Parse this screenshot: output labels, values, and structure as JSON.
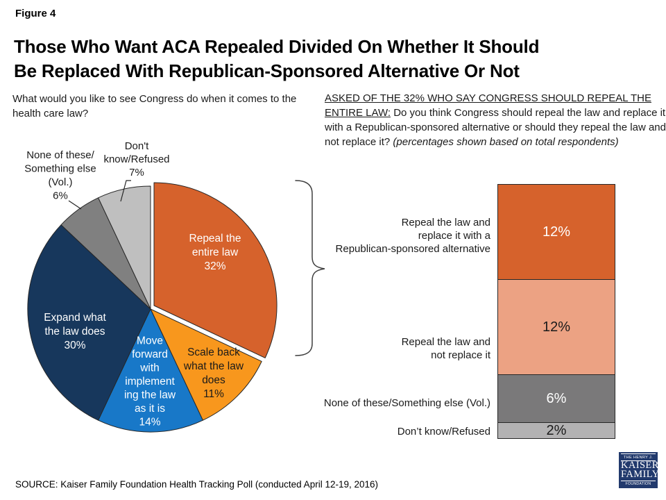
{
  "header": {
    "figure_label": "Figure 4",
    "title_line1": "Those Who Want ACA Repealed Divided On Whether It Should",
    "title_line2": "Be Replaced With Republican-Sponsored Alternative Or Not"
  },
  "pie_section": {
    "question": "What would you like to see Congress do when it comes to the health care law?"
  },
  "bar_section": {
    "question_prefix": "ASKED OF THE 32% WHO SAY CONGRESS SHOULD REPEAL THE ENTIRE LAW:",
    "question_body": " Do you think Congress should repeal the law and replace it with a Republican-sponsored alternative or should they repeal the law and not replace it? ",
    "question_note": "(percentages shown based on total respondents)"
  },
  "chart_data": [
    {
      "type": "pie",
      "title": "What would you like to see Congress do when it comes to the health care law?",
      "start_angle_deg": 0,
      "direction": "clockwise",
      "slices": [
        {
          "label": "Repeal the entire law",
          "value": 32,
          "color": "#D6622C",
          "text_color": "#FFFFFF",
          "inside": true,
          "exploded": true,
          "label_lines": [
            "Repeal the",
            "entire law",
            "32%"
          ]
        },
        {
          "label": "Scale back what the law does",
          "value": 11,
          "color": "#F8971D",
          "text_color": "#1A1A1A",
          "inside": true,
          "exploded": false,
          "label_lines": [
            "Scale back",
            "what the law",
            "does",
            "11%"
          ]
        },
        {
          "label": "Move forward with implementing the law as it is",
          "value": 14,
          "color": "#1878C8",
          "text_color": "#FFFFFF",
          "inside": true,
          "exploded": false,
          "label_lines": [
            "Move",
            "forward",
            "with",
            "implement",
            "ing the law",
            "as it is",
            "14%"
          ]
        },
        {
          "label": "Expand what the law does",
          "value": 30,
          "color": "#17375C",
          "text_color": "#FFFFFF",
          "inside": true,
          "exploded": false,
          "label_lines": [
            "Expand what",
            "the law does",
            "30%"
          ]
        },
        {
          "label": "None of these/Something else (Vol.)",
          "value": 6,
          "color": "#808080",
          "text_color": "#1A1A1A",
          "inside": false,
          "exploded": false,
          "label_lines": [
            "None of these/",
            "Something else",
            "(Vol.)",
            "6%"
          ]
        },
        {
          "label": "Don't know/Refused",
          "value": 7,
          "color": "#BFBFBF",
          "text_color": "#1A1A1A",
          "inside": false,
          "exploded": false,
          "label_lines": [
            "Don't",
            "know/Refused",
            "7%"
          ]
        }
      ]
    },
    {
      "type": "stacked_bar",
      "note": "percentages shown based on total respondents",
      "total_of_subset": 32,
      "segments": [
        {
          "label": "Repeal the law and replace it with a Republican-sponsored alternative",
          "label_lines": [
            "Repeal the law and",
            "replace it with a",
            "Republican-sponsored alternative"
          ],
          "value": 12,
          "pct_label": "12%",
          "color": "#D6622C",
          "pct_color": "#FFFFFF"
        },
        {
          "label": "Repeal the law and not replace it",
          "label_lines": [
            "Repeal the law and",
            "not replace it"
          ],
          "value": 12,
          "pct_label": "12%",
          "color": "#ECA283",
          "pct_color": "#1A1A1A"
        },
        {
          "label": "None of these/Something else (Vol.)",
          "label_lines": [
            "None of these/Something else (Vol.)"
          ],
          "value": 6,
          "pct_label": "6%",
          "color": "#7A797A",
          "pct_color": "#FFFFFF"
        },
        {
          "label": "Don’t know/Refused",
          "label_lines": [
            "Don’t know/Refused"
          ],
          "value": 2,
          "pct_label": "2%",
          "color": "#B3B2B3",
          "pct_color": "#1A1A1A"
        }
      ]
    }
  ],
  "footer": {
    "source": "SOURCE: Kaiser Family Foundation Health Tracking Poll (conducted April 12-19, 2016)",
    "logo": {
      "top": "THE HENRY J.",
      "name1": "KAISER",
      "name2": "FAMILY",
      "bottom": "FOUNDATION"
    }
  }
}
